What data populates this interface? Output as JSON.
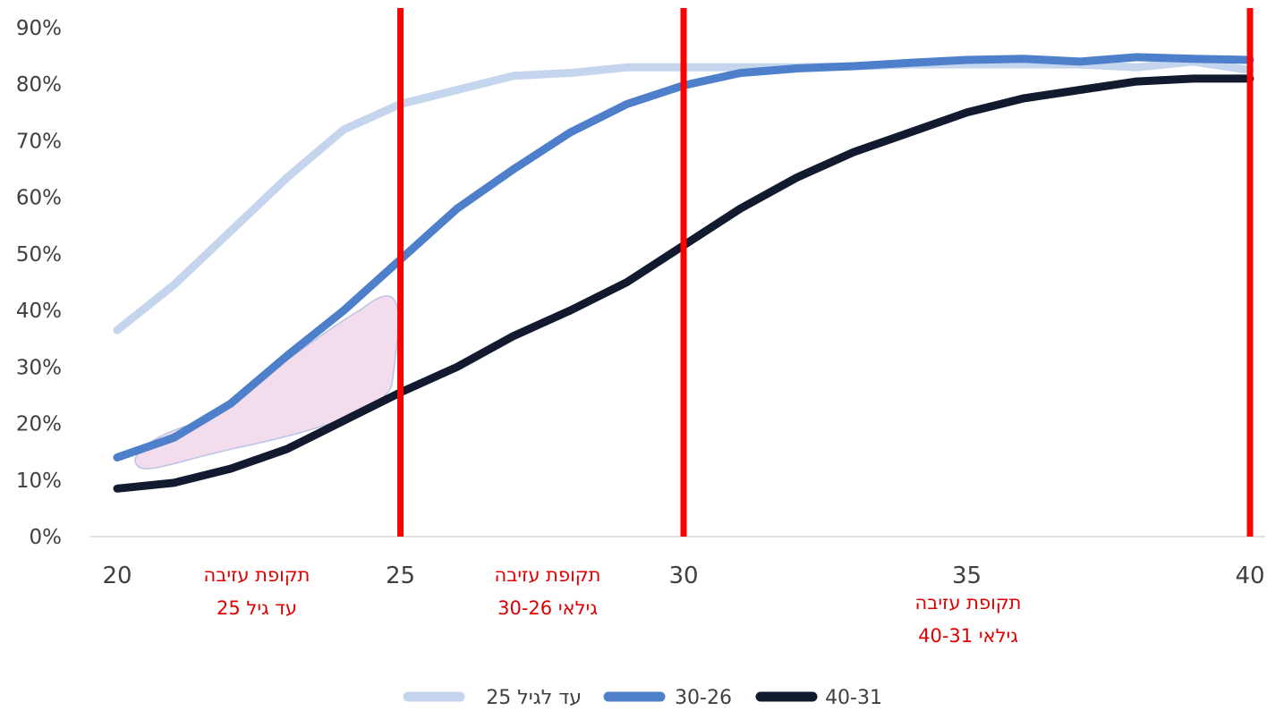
{
  "chart_data": {
    "type": "line",
    "title": "",
    "xlabel": "",
    "ylabel": "",
    "xlim": [
      20,
      40
    ],
    "ylim": [
      0,
      90
    ],
    "x_ticks": [
      "20",
      "25",
      "30",
      "35",
      "40"
    ],
    "y_ticks": [
      "0%",
      "10%",
      "20%",
      "30%",
      "40%",
      "50%",
      "60%",
      "70%",
      "80%",
      "90%"
    ],
    "grid": false,
    "legend_position": "bottom",
    "x": [
      20,
      21,
      22,
      23,
      24,
      25,
      26,
      27,
      28,
      29,
      30,
      31,
      32,
      33,
      34,
      35,
      36,
      37,
      38,
      39,
      40
    ],
    "series": [
      {
        "name": "עד לגיל 25",
        "color": "#c5d5ee",
        "values": [
          36.5,
          44.5,
          54,
          63.5,
          72,
          76.5,
          79,
          81.5,
          82,
          83,
          83,
          83,
          83,
          83.2,
          83.5,
          83.5,
          83.5,
          83.5,
          83,
          84,
          82.5
        ]
      },
      {
        "name": "30-26",
        "color": "#4d7fca",
        "values": [
          14,
          17.5,
          23.5,
          32,
          40,
          49,
          58,
          65,
          71.5,
          76.5,
          79.8,
          82,
          82.8,
          83.2,
          83.8,
          84.3,
          84.5,
          84,
          84.8,
          84.5,
          84.3
        ]
      },
      {
        "name": "40-31",
        "color": "#111a2e",
        "values": [
          8.5,
          9.5,
          12,
          15.5,
          20.5,
          25.5,
          30,
          35.5,
          40,
          45,
          51.5,
          58,
          63.5,
          68,
          71.5,
          75,
          77.5,
          79,
          80.5,
          81,
          81
        ]
      }
    ],
    "vertical_markers": {
      "color": "#ff0000",
      "x": [
        25,
        30,
        40
      ]
    },
    "highlight_color": "#f3dcec",
    "annotations": [
      {
        "lines": [
          "תקופת עזיבה",
          "עד גיל 25"
        ],
        "color": "#e00000"
      },
      {
        "lines": [
          "תקופת עזיבה",
          "גילאי 30-26"
        ],
        "color": "#e00000"
      },
      {
        "lines": [
          "תקופת עזיבה",
          "גילאי 40-31"
        ],
        "color": "#e00000"
      }
    ]
  }
}
